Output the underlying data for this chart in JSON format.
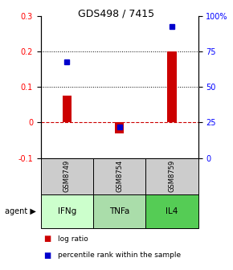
{
  "title": "GDS498 / 7415",
  "samples": [
    "GSM8749",
    "GSM8754",
    "GSM8759"
  ],
  "agents": [
    "IFNg",
    "TNFa",
    "IL4"
  ],
  "log_ratios": [
    0.075,
    -0.03,
    0.2
  ],
  "percentile_ranks_pct": [
    68,
    22,
    93
  ],
  "bar_color": "#cc0000",
  "dot_color": "#0000cc",
  "ylim_left": [
    -0.1,
    0.3
  ],
  "ylim_right": [
    0,
    100
  ],
  "yticks_left": [
    -0.1,
    0.0,
    0.1,
    0.2,
    0.3
  ],
  "yticks_right": [
    0,
    25,
    50,
    75,
    100
  ],
  "ytick_labels_right": [
    "0",
    "25",
    "50",
    "75",
    "100%"
  ],
  "grid_lines": [
    0.1,
    0.2
  ],
  "zero_line": 0.0,
  "agent_colors": [
    "#ccffcc",
    "#aaddaa",
    "#55cc55"
  ],
  "sample_box_color": "#cccccc",
  "legend_log_ratio_color": "#cc0000",
  "legend_percentile_color": "#0000cc"
}
